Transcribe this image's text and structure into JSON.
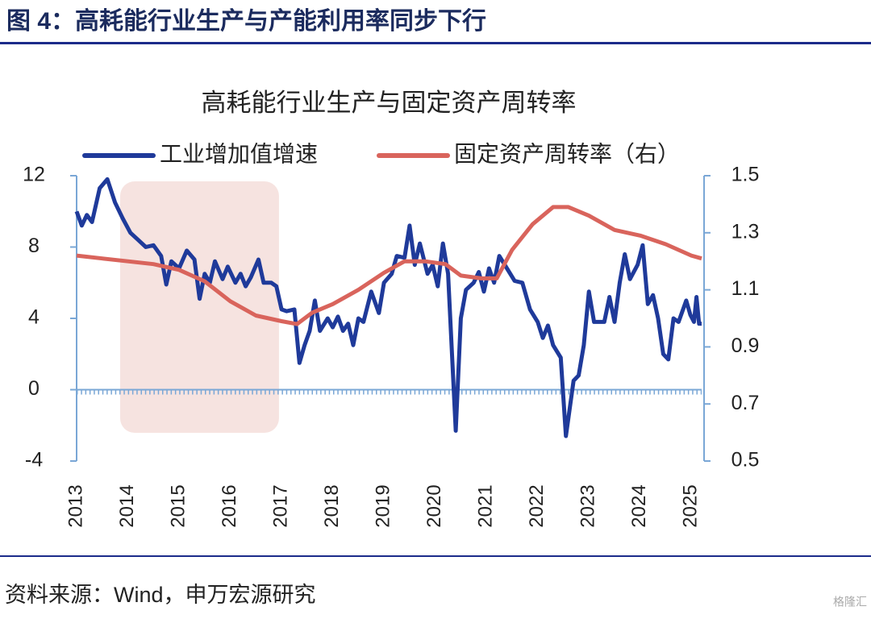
{
  "header": {
    "title": "图 4：高耗能行业生产与产能利用率同步下行"
  },
  "chart_data": {
    "type": "line",
    "title": "高耗能行业生产与固定资产周转率",
    "xlim": [
      2013,
      2025.2
    ],
    "xticks": [
      2013,
      2014,
      2015,
      2016,
      2017,
      2018,
      2019,
      2020,
      2021,
      2022,
      2023,
      2024,
      2025
    ],
    "ylim": [
      -4,
      12
    ],
    "yticks": [
      -4,
      0,
      4,
      8,
      12
    ],
    "y2lim": [
      0.5,
      1.5
    ],
    "y2ticks": [
      0.5,
      0.7,
      0.9,
      1.1,
      1.3,
      1.5
    ],
    "shaded_xrange": [
      2013.85,
      2016.95
    ],
    "series": [
      {
        "name": "工业增加值增速",
        "color": "#1f3a9a",
        "x": [
          2013.0,
          2013.1,
          2013.2,
          2013.3,
          2013.45,
          2013.6,
          2013.75,
          2013.9,
          2014.05,
          2014.2,
          2014.35,
          2014.5,
          2014.65,
          2014.75,
          2014.85,
          2015.0,
          2015.15,
          2015.3,
          2015.4,
          2015.5,
          2015.6,
          2015.7,
          2015.85,
          2015.95,
          2016.1,
          2016.2,
          2016.3,
          2016.4,
          2016.55,
          2016.65,
          2016.8,
          2016.9,
          2017.0,
          2017.1,
          2017.25,
          2017.35,
          2017.45,
          2017.55,
          2017.65,
          2017.75,
          2017.9,
          2018.0,
          2018.1,
          2018.2,
          2018.3,
          2018.4,
          2018.5,
          2018.6,
          2018.75,
          2018.9,
          2019.0,
          2019.15,
          2019.25,
          2019.4,
          2019.5,
          2019.6,
          2019.7,
          2019.85,
          2019.95,
          2020.05,
          2020.15,
          2020.25,
          2020.4,
          2020.5,
          2020.6,
          2020.75,
          2020.85,
          2020.95,
          2021.05,
          2021.15,
          2021.25,
          2021.4,
          2021.55,
          2021.7,
          2021.85,
          2022.0,
          2022.1,
          2022.2,
          2022.3,
          2022.45,
          2022.55,
          2022.7,
          2022.8,
          2022.9,
          2023.0,
          2023.1,
          2023.2,
          2023.3,
          2023.4,
          2023.5,
          2023.6,
          2023.7,
          2023.8,
          2023.95,
          2024.05,
          2024.15,
          2024.25,
          2024.35,
          2024.45,
          2024.55,
          2024.65,
          2024.75,
          2024.9,
          2024.98,
          2025.05,
          2025.1,
          2025.15,
          2025.2
        ],
        "values": [
          10,
          9.2,
          9.8,
          9.4,
          11.3,
          11.8,
          10.5,
          9.6,
          8.8,
          8.4,
          8.0,
          8.1,
          7.5,
          5.9,
          7.2,
          6.8,
          7.8,
          7.3,
          5.1,
          6.5,
          6.0,
          7.2,
          6.2,
          6.9,
          6.0,
          6.5,
          5.8,
          6.3,
          7.3,
          6.0,
          6.0,
          5.8,
          4.5,
          4.4,
          4.5,
          1.5,
          2.5,
          3.3,
          5.0,
          3.3,
          4.0,
          3.5,
          4.1,
          3.3,
          3.7,
          2.5,
          4.0,
          3.8,
          5.5,
          4.3,
          6.0,
          6.5,
          7.5,
          7.4,
          9.2,
          7.0,
          8.2,
          6.5,
          7.0,
          5.8,
          8.2,
          6.5,
          -2.3,
          4.0,
          5.6,
          6.0,
          6.6,
          5.5,
          6.8,
          6.0,
          7.5,
          6.8,
          6.1,
          6.0,
          4.5,
          3.8,
          2.9,
          3.6,
          2.5,
          1.8,
          -2.6,
          0.5,
          0.8,
          2.5,
          5.5,
          3.8,
          3.8,
          3.8,
          5.2,
          3.8,
          6.0,
          7.6,
          6.2,
          7.0,
          8.1,
          4.8,
          5.3,
          4.0,
          2.0,
          1.7,
          4.0,
          3.8,
          5.0,
          4.2,
          3.8,
          5.2,
          3.7,
          3.7
        ]
      },
      {
        "name": "固定资产周转率（右）",
        "color": "#d9645c",
        "axis": "y2",
        "x": [
          2013.0,
          2013.5,
          2014.0,
          2014.5,
          2015.0,
          2015.5,
          2016.0,
          2016.5,
          2017.0,
          2017.3,
          2017.6,
          2018.0,
          2018.5,
          2019.0,
          2019.4,
          2019.8,
          2020.2,
          2020.5,
          2020.9,
          2021.2,
          2021.5,
          2021.9,
          2022.3,
          2022.6,
          2023.0,
          2023.5,
          2024.0,
          2024.5,
          2025.0,
          2025.2
        ],
        "values": [
          1.22,
          1.21,
          1.2,
          1.19,
          1.17,
          1.13,
          1.06,
          1.01,
          0.99,
          0.98,
          1.02,
          1.05,
          1.1,
          1.16,
          1.2,
          1.2,
          1.19,
          1.15,
          1.14,
          1.14,
          1.24,
          1.33,
          1.39,
          1.39,
          1.36,
          1.31,
          1.29,
          1.26,
          1.22,
          1.21
        ]
      }
    ]
  },
  "footer": {
    "source": "资料来源：Wind，申万宏源研究",
    "watermark": "格隆汇"
  }
}
